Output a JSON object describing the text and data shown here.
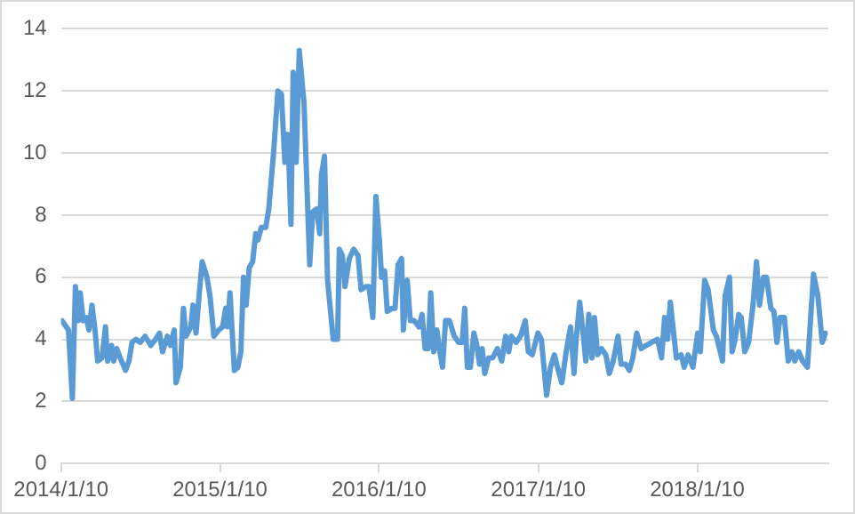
{
  "chart_data": {
    "type": "line",
    "color": "#5b9bd5",
    "grid": "y",
    "legend": false,
    "marker": "none",
    "line_style": "solid",
    "xlim": [
      "2014-01-10",
      "2018-11-07"
    ],
    "xticks": [
      {
        "value": "2014-01-10",
        "label": "2014/1/10"
      },
      {
        "value": "2015-01-10",
        "label": "2015/1/10"
      },
      {
        "value": "2016-01-10",
        "label": "2016/1/10"
      },
      {
        "value": "2017-01-10",
        "label": "2017/1/10"
      },
      {
        "value": "2018-01-10",
        "label": "2018/1/10"
      }
    ],
    "ylim": [
      0,
      14
    ],
    "yticks": [
      0,
      2,
      4,
      6,
      8,
      10,
      12,
      14
    ],
    "x": [
      "2014-01-12",
      "2014-01-27",
      "2014-02-05",
      "2014-02-12",
      "2014-02-19",
      "2014-02-23",
      "2014-03-02",
      "2014-03-09",
      "2014-03-15",
      "2014-03-22",
      "2014-03-29",
      "2014-04-04",
      "2014-04-14",
      "2014-04-22",
      "2014-04-27",
      "2014-05-06",
      "2014-05-11",
      "2014-05-18",
      "2014-05-26",
      "2014-06-07",
      "2014-06-15",
      "2014-06-22",
      "2014-07-01",
      "2014-07-11",
      "2014-07-22",
      "2014-08-04",
      "2014-08-15",
      "2014-08-24",
      "2014-08-31",
      "2014-09-11",
      "2014-09-18",
      "2014-09-27",
      "2014-10-01",
      "2014-10-11",
      "2014-10-18",
      "2014-10-24",
      "2014-11-04",
      "2014-11-09",
      "2014-11-16",
      "2014-11-23",
      "2014-11-30",
      "2014-12-11",
      "2014-12-18",
      "2014-12-27",
      "2015-01-07",
      "2015-01-16",
      "2015-01-23",
      "2015-01-27",
      "2015-02-02",
      "2015-02-12",
      "2015-02-20",
      "2015-02-27",
      "2015-03-05",
      "2015-03-11",
      "2015-03-18",
      "2015-03-26",
      "2015-04-02",
      "2015-04-07",
      "2015-04-15",
      "2015-04-25",
      "2015-05-02",
      "2015-05-13",
      "2015-05-23",
      "2015-05-31",
      "2015-06-08",
      "2015-06-15",
      "2015-06-22",
      "2015-06-27",
      "2015-07-04",
      "2015-07-11",
      "2015-07-22",
      "2015-08-04",
      "2015-08-11",
      "2015-08-20",
      "2015-08-27",
      "2015-08-31",
      "2015-09-07",
      "2015-09-14",
      "2015-09-27",
      "2015-10-07",
      "2015-10-11",
      "2015-10-18",
      "2015-10-24",
      "2015-11-03",
      "2015-11-13",
      "2015-11-23",
      "2015-11-30",
      "2015-12-11",
      "2015-12-18",
      "2015-12-27",
      "2016-01-03",
      "2016-01-11",
      "2016-01-16",
      "2016-01-23",
      "2016-01-29",
      "2016-02-09",
      "2016-02-16",
      "2016-02-23",
      "2016-03-02",
      "2016-03-06",
      "2016-03-15",
      "2016-03-22",
      "2016-03-31",
      "2016-04-11",
      "2016-04-18",
      "2016-04-25",
      "2016-05-02",
      "2016-05-08",
      "2016-05-15",
      "2016-05-22",
      "2016-05-29",
      "2016-06-04",
      "2016-06-11",
      "2016-06-20",
      "2016-07-01",
      "2016-07-11",
      "2016-07-19",
      "2016-07-25",
      "2016-07-31",
      "2016-08-07",
      "2016-08-15",
      "2016-08-22",
      "2016-08-28",
      "2016-09-03",
      "2016-09-09",
      "2016-09-18",
      "2016-09-27",
      "2016-10-08",
      "2016-10-18",
      "2016-10-27",
      "2016-11-03",
      "2016-11-09",
      "2016-11-20",
      "2016-11-30",
      "2016-12-11",
      "2016-12-18",
      "2016-12-27",
      "2017-01-09",
      "2017-01-17",
      "2017-01-29",
      "2017-02-07",
      "2017-02-16",
      "2017-02-23",
      "2017-03-05",
      "2017-03-15",
      "2017-03-25",
      "2017-04-02",
      "2017-04-07",
      "2017-04-15",
      "2017-04-22",
      "2017-04-29",
      "2017-05-06",
      "2017-05-13",
      "2017-05-19",
      "2017-05-26",
      "2017-06-04",
      "2017-06-14",
      "2017-06-22",
      "2017-07-01",
      "2017-07-12",
      "2017-07-19",
      "2017-07-29",
      "2017-08-07",
      "2017-08-15",
      "2017-08-24",
      "2017-09-03",
      "2017-09-14",
      "2017-09-27",
      "2017-10-11",
      "2017-10-20",
      "2017-10-27",
      "2017-11-03",
      "2017-11-09",
      "2017-11-16",
      "2017-11-23",
      "2017-12-04",
      "2017-12-11",
      "2017-12-20",
      "2017-12-31",
      "2018-01-11",
      "2018-01-17",
      "2018-01-27",
      "2018-02-04",
      "2018-02-16",
      "2018-02-23",
      "2018-03-02",
      "2018-03-09",
      "2018-03-15",
      "2018-03-25",
      "2018-03-31",
      "2018-04-07",
      "2018-04-15",
      "2018-04-21",
      "2018-04-29",
      "2018-05-08",
      "2018-05-18",
      "2018-05-26",
      "2018-06-02",
      "2018-06-11",
      "2018-06-18",
      "2018-06-28",
      "2018-07-05",
      "2018-07-12",
      "2018-07-19",
      "2018-07-29",
      "2018-08-07",
      "2018-08-15",
      "2018-08-22",
      "2018-08-31",
      "2018-09-09",
      "2018-09-20",
      "2018-09-27",
      "2018-10-04",
      "2018-10-14",
      "2018-10-24",
      "2018-10-31"
    ],
    "values": [
      4.6,
      4.3,
      2.1,
      5.7,
      4.6,
      5.5,
      4.6,
      4.7,
      4.3,
      5.1,
      4.3,
      3.3,
      3.4,
      4.4,
      3.3,
      3.8,
      3.3,
      3.7,
      3.4,
      3.0,
      3.3,
      3.9,
      4.0,
      3.9,
      4.1,
      3.8,
      4.0,
      4.2,
      3.6,
      4.1,
      3.8,
      4.3,
      2.6,
      3.1,
      5.0,
      4.1,
      4.4,
      5.1,
      4.2,
      5.4,
      6.5,
      6.0,
      5.4,
      4.1,
      4.3,
      4.4,
      5.0,
      4.4,
      5.5,
      3.0,
      3.1,
      3.6,
      6.0,
      5.1,
      6.3,
      6.5,
      7.4,
      7.2,
      7.6,
      7.6,
      8.2,
      10.0,
      12.0,
      11.9,
      9.7,
      10.6,
      7.7,
      12.6,
      9.7,
      13.3,
      11.6,
      6.4,
      8.1,
      8.2,
      7.4,
      9.3,
      9.9,
      5.9,
      4.0,
      4.0,
      6.9,
      6.7,
      5.7,
      6.6,
      6.9,
      6.7,
      5.6,
      5.7,
      5.7,
      4.7,
      8.6,
      7.2,
      6.0,
      6.2,
      4.9,
      5.0,
      5.0,
      6.4,
      6.6,
      4.3,
      5.9,
      4.6,
      4.6,
      4.4,
      4.8,
      3.7,
      3.7,
      5.5,
      3.6,
      4.3,
      3.6,
      3.1,
      4.6,
      4.6,
      4.1,
      3.9,
      3.9,
      5.0,
      3.1,
      3.1,
      4.2,
      3.8,
      3.2,
      3.7,
      2.9,
      3.4,
      3.4,
      3.7,
      3.3,
      4.1,
      3.6,
      4.1,
      3.9,
      4.1,
      4.6,
      3.6,
      3.5,
      4.2,
      4.0,
      2.2,
      3.1,
      3.5,
      3.1,
      2.6,
      3.6,
      4.4,
      2.9,
      4.0,
      5.2,
      4.3,
      3.3,
      4.8,
      3.4,
      4.7,
      3.5,
      3.7,
      3.5,
      2.9,
      3.3,
      4.1,
      3.2,
      3.2,
      3.0,
      3.4,
      4.2,
      3.7,
      3.8,
      3.9,
      4.0,
      3.4,
      4.7,
      4.0,
      5.2,
      4.3,
      3.4,
      3.5,
      3.1,
      3.5,
      3.1,
      4.2,
      3.6,
      5.9,
      5.6,
      4.3,
      4.1,
      3.7,
      3.3,
      5.4,
      6.0,
      3.6,
      4.0,
      4.8,
      4.7,
      3.6,
      3.9,
      5.1,
      6.5,
      5.1,
      6.0,
      6.0,
      5.0,
      4.9,
      3.9,
      4.7,
      4.7,
      3.3,
      3.6,
      3.3,
      3.6,
      3.3,
      3.1,
      4.6,
      6.1,
      5.4,
      3.9,
      4.2
    ]
  }
}
